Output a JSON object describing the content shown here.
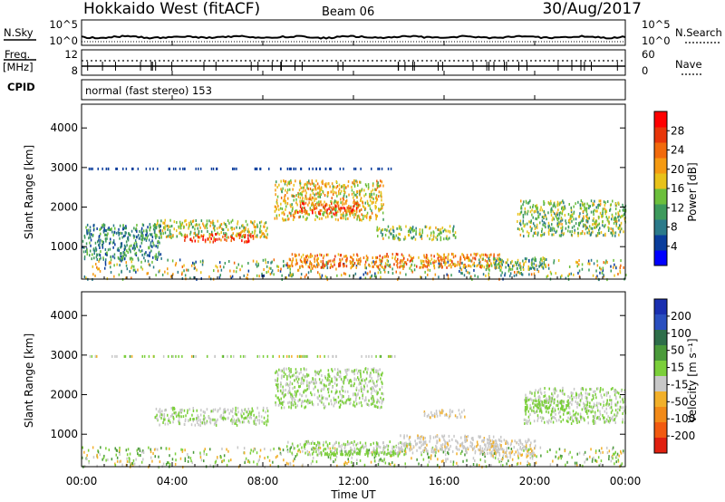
{
  "header": {
    "title": "Hokkaido West (fitACF)",
    "beam": "Beam 06",
    "date": "30/Aug/2017"
  },
  "noise_panel": {
    "left_label": "N.Sky",
    "left_ticks": [
      "10^5",
      "10^0"
    ],
    "right_ticks": [
      "10^5",
      "10^0"
    ],
    "right_label": "N.Search"
  },
  "freq_panel": {
    "left_label_1": "Freq.",
    "left_label_2": "[MHz]",
    "left_ticks": [
      "12",
      "8"
    ],
    "right_ticks": [
      "60",
      "0"
    ],
    "right_label": "Nave"
  },
  "cpid": {
    "label": "CPID",
    "value": "normal (fast stereo) 153"
  },
  "chart_data": [
    {
      "type": "heatmap",
      "quantity": "Power",
      "ylabel": "Slant Range [km]",
      "xlabel": "Time UT",
      "ylim": [
        180,
        4600
      ],
      "yticks": [
        "1000",
        "2000",
        "3000",
        "4000"
      ],
      "colorbar": {
        "label": "Power [dB]",
        "range": [
          0,
          32
        ],
        "tick_labels": [
          "4",
          "8",
          "12",
          "16",
          "20",
          "24",
          "28"
        ],
        "colors": [
          "#0000ff",
          "#0a3d9c",
          "#2b7a8a",
          "#3d9a5c",
          "#6cbf3c",
          "#e8c21a",
          "#f59a12",
          "#f26a0c",
          "#e8360a",
          "#ff0000"
        ]
      },
      "bands": [
        {
          "t0": 3.2,
          "t1": 8.2,
          "r0": 1250,
          "r1": 1700,
          "power": 16
        },
        {
          "t0": 4.5,
          "t1": 7.6,
          "r0": 1150,
          "r1": 1350,
          "power": 26
        },
        {
          "t0": 8.5,
          "t1": 13.3,
          "r0": 1700,
          "r1": 2700,
          "power": 18
        },
        {
          "t0": 9.5,
          "t1": 12.3,
          "r0": 1850,
          "r1": 2150,
          "power": 26
        },
        {
          "t0": 9.0,
          "t1": 18.5,
          "r0": 500,
          "r1": 850,
          "power": 22
        },
        {
          "t0": 13.0,
          "t1": 16.5,
          "r0": 1200,
          "r1": 1550,
          "power": 14
        },
        {
          "t0": 19.2,
          "t1": 24.0,
          "r0": 1300,
          "r1": 2200,
          "power": 14
        },
        {
          "t0": 0.0,
          "t1": 3.5,
          "r0": 700,
          "r1": 1600,
          "power": 10
        },
        {
          "t0": 17.5,
          "t1": 20.5,
          "r0": 450,
          "r1": 750,
          "power": 12
        }
      ]
    },
    {
      "type": "heatmap",
      "quantity": "Velocity",
      "ylabel": "Slant Range [km]",
      "xlabel": "Time UT",
      "ylim": [
        180,
        4600
      ],
      "yticks": [
        "1000",
        "2000",
        "3000",
        "4000"
      ],
      "xticks": [
        "00:00",
        "04:00",
        "08:00",
        "12:00",
        "16:00",
        "20:00",
        "00:00"
      ],
      "colorbar": {
        "label": "Velocity [m s⁻¹]",
        "range": [
          -250,
          250
        ],
        "tick_labels": [
          "200",
          "100",
          "50",
          "15",
          "-15",
          "-50",
          "-100",
          "-200"
        ],
        "colors": [
          "#1a2fb0",
          "#2a4fbf",
          "#2e6e4a",
          "#4a9a3a",
          "#7bcf3a",
          "#c8c8c8",
          "#f2b02a",
          "#f28a18",
          "#f25a10",
          "#e02010"
        ]
      },
      "bands": [
        {
          "t0": 3.2,
          "t1": 8.2,
          "r0": 1250,
          "r1": 1700,
          "velocity": 0
        },
        {
          "t0": 8.5,
          "t1": 13.3,
          "r0": 1700,
          "r1": 2700,
          "velocity": 0
        },
        {
          "t0": 9.0,
          "t1": 14.5,
          "r0": 500,
          "r1": 850,
          "velocity": 0
        },
        {
          "t0": 14.0,
          "t1": 18.5,
          "r0": 550,
          "r1": 1000,
          "velocity": -35
        },
        {
          "t0": 15.0,
          "t1": 17.0,
          "r0": 1450,
          "r1": 1650,
          "velocity": -35
        },
        {
          "t0": 19.5,
          "t1": 24.0,
          "r0": 1300,
          "r1": 2200,
          "velocity": 0
        },
        {
          "t0": 19.5,
          "t1": 21.5,
          "r0": 1600,
          "r1": 1900,
          "velocity": 30
        },
        {
          "t0": 10.5,
          "t1": 14.0,
          "r0": 480,
          "r1": 600,
          "velocity": 30
        },
        {
          "t0": 17.5,
          "t1": 20.0,
          "r0": 450,
          "r1": 900,
          "velocity": -40
        }
      ]
    }
  ]
}
